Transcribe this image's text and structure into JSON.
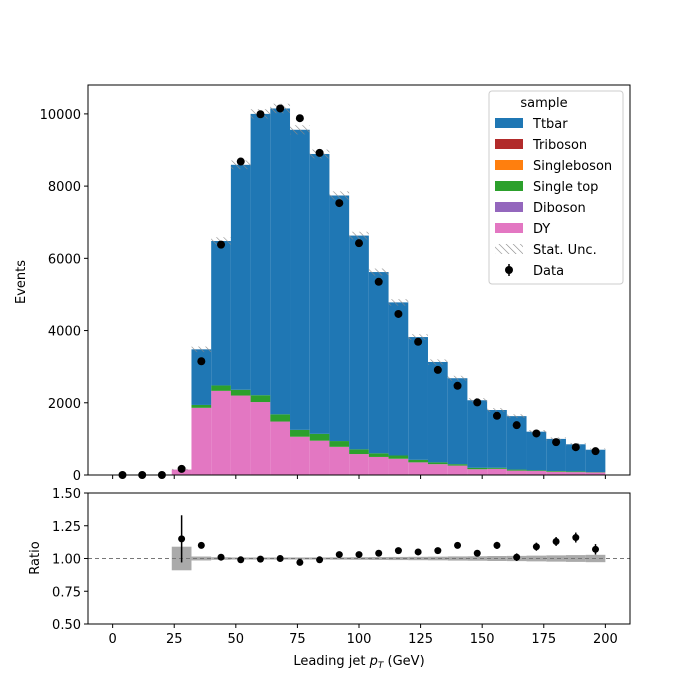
{
  "chart_data": [
    {
      "type": "bar",
      "stacked": true,
      "panel": "main",
      "ylabel": "Events",
      "xlim": [
        -10,
        210
      ],
      "ylim": [
        0,
        10800
      ],
      "yticks": [
        0,
        2000,
        4000,
        6000,
        8000,
        10000
      ],
      "bin_edges": [
        24,
        32,
        40,
        48,
        56,
        64,
        72,
        80,
        88,
        96,
        104,
        112,
        120,
        128,
        136,
        144,
        152,
        160,
        168,
        176,
        184,
        192,
        200
      ],
      "series": [
        {
          "name": "DY",
          "color": "#e377c2",
          "values": [
            150,
            1860,
            2330,
            2200,
            2020,
            1480,
            1060,
            950,
            780,
            580,
            500,
            450,
            350,
            300,
            260,
            160,
            170,
            120,
            110,
            90,
            80,
            70
          ]
        },
        {
          "name": "Diboson",
          "color": "#9467bd",
          "values": [
            0,
            0,
            0,
            0,
            0,
            0,
            0,
            0,
            0,
            0,
            0,
            0,
            0,
            0,
            0,
            0,
            0,
            0,
            0,
            0,
            0,
            0
          ]
        },
        {
          "name": "Single top",
          "color": "#2ca02c",
          "values": [
            0,
            80,
            150,
            160,
            190,
            200,
            190,
            190,
            160,
            130,
            100,
            90,
            70,
            50,
            40,
            40,
            30,
            30,
            20,
            20,
            20,
            10
          ]
        },
        {
          "name": "Singleboson",
          "color": "#ff7f0e",
          "values": [
            0,
            0,
            0,
            0,
            0,
            0,
            0,
            0,
            0,
            0,
            0,
            0,
            0,
            0,
            0,
            0,
            0,
            0,
            0,
            0,
            0,
            0
          ]
        },
        {
          "name": "Triboson",
          "color": "#b22b2b",
          "values": [
            0,
            0,
            0,
            0,
            0,
            0,
            0,
            0,
            0,
            0,
            0,
            0,
            0,
            0,
            0,
            0,
            0,
            0,
            0,
            0,
            0,
            0
          ]
        },
        {
          "name": "Ttbar",
          "color": "#1f77b4",
          "values": [
            0,
            1540,
            4000,
            6230,
            7790,
            8470,
            8310,
            7750,
            6800,
            5920,
            5020,
            4240,
            3400,
            2780,
            2380,
            1870,
            1600,
            1480,
            1070,
            890,
            750,
            620
          ]
        }
      ],
      "data": {
        "name": "Data",
        "x": [
          4,
          12,
          20,
          28,
          36,
          44,
          52,
          60,
          68,
          76,
          84,
          92,
          100,
          108,
          116,
          124,
          132,
          140,
          148,
          156,
          164,
          172,
          180,
          188,
          196
        ],
        "y": [
          0,
          0,
          0,
          170,
          3150,
          6380,
          8680,
          9990,
          10150,
          9880,
          8920,
          7530,
          6420,
          5350,
          4460,
          3690,
          2910,
          2470,
          2010,
          1640,
          1380,
          1150,
          910,
          770,
          660
        ]
      },
      "stat_unc_label": "Stat. Unc.",
      "legend": {
        "title": "sample",
        "placement": "top-right",
        "entries": [
          "Ttbar",
          "Triboson",
          "Singleboson",
          "Single top",
          "Diboson",
          "DY",
          "Stat. Unc.",
          "Data"
        ]
      }
    },
    {
      "type": "scatter",
      "panel": "ratio",
      "ylabel": "Ratio",
      "xlabel": "Leading jet  pT (GeV)",
      "xlim": [
        -10,
        210
      ],
      "ylim": [
        0.5,
        1.5
      ],
      "xticks": [
        0,
        25,
        50,
        75,
        100,
        125,
        150,
        175,
        200
      ],
      "yticks": [
        "0.50",
        "0.75",
        "1.00",
        "1.25",
        "1.50"
      ],
      "reference_line": 1.0,
      "x": [
        28,
        36,
        44,
        52,
        60,
        68,
        76,
        84,
        92,
        100,
        108,
        116,
        124,
        132,
        140,
        148,
        156,
        164,
        172,
        180,
        188,
        196
      ],
      "y": [
        1.15,
        1.1,
        1.01,
        0.99,
        0.995,
        1.0,
        0.97,
        0.99,
        1.03,
        1.03,
        1.04,
        1.06,
        1.05,
        1.06,
        1.1,
        1.04,
        1.1,
        1.01,
        1.09,
        1.13,
        1.16,
        1.07
      ],
      "yerr": [
        0.18,
        0.02,
        0.015,
        0.012,
        0.011,
        0.011,
        0.011,
        0.011,
        0.012,
        0.013,
        0.014,
        0.016,
        0.018,
        0.02,
        0.022,
        0.024,
        0.027,
        0.029,
        0.031,
        0.034,
        0.038,
        0.04
      ],
      "unc_band": [
        0.09,
        0.015,
        0.01,
        0.008,
        0.008,
        0.008,
        0.008,
        0.008,
        0.009,
        0.01,
        0.011,
        0.012,
        0.013,
        0.014,
        0.016,
        0.017,
        0.019,
        0.02,
        0.022,
        0.024,
        0.026,
        0.028
      ]
    }
  ],
  "colors": {
    "stat_unc_hatch": "#888888",
    "ratio_band": "#aaaaaa",
    "data_marker": "#000000"
  }
}
